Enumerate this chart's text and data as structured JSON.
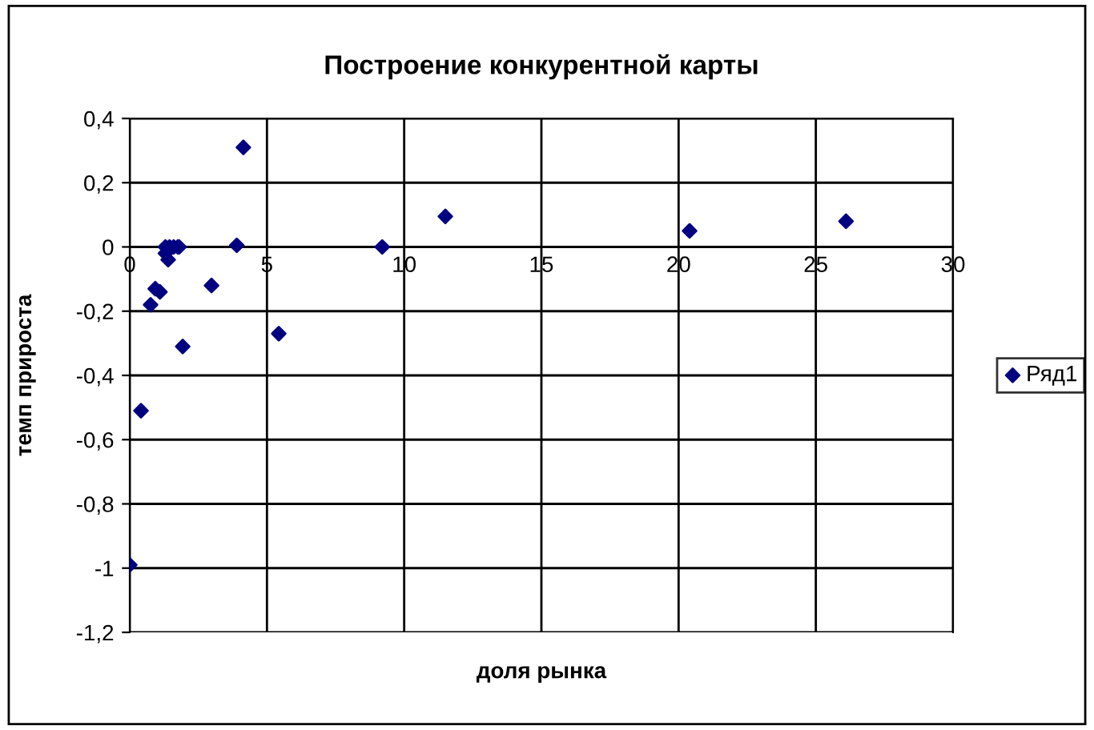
{
  "chart_data": {
    "type": "scatter",
    "title": "Построение конкурентной карты",
    "xlabel": "доля рынка",
    "ylabel": "темп прироста",
    "series": [
      {
        "name": "Ряд1",
        "color": "#000080",
        "x": [
          4.14,
          11.5,
          20.4,
          26.1,
          9.2,
          3.9,
          1.3,
          1.45,
          1.6,
          1.75,
          1.8,
          1.3,
          1.4,
          0.93,
          1.1,
          0.76,
          2.98,
          1.93,
          5.43,
          0.41,
          0.0
        ],
        "values": [
          0.31,
          0.095,
          0.05,
          0.08,
          0.0,
          0.005,
          0.0,
          0.0,
          0.0,
          0.0,
          0.0,
          -0.02,
          -0.04,
          -0.13,
          -0.14,
          -0.18,
          -0.12,
          -0.31,
          -0.27,
          -0.51,
          -0.99
        ]
      }
    ],
    "marker": "diamond",
    "legend": "right",
    "grid": true,
    "xlim": [
      0,
      30
    ],
    "xticks": [
      0,
      5,
      10,
      15,
      20,
      25,
      30
    ],
    "ylim": [
      -1.2,
      0.4
    ],
    "yticks": [
      {
        "value": -1.2,
        "label": "-1,2"
      },
      {
        "value": -1,
        "label": "-1"
      },
      {
        "value": -0.8,
        "label": "-0,8"
      },
      {
        "value": -0.6,
        "label": "-0,6"
      },
      {
        "value": -0.4,
        "label": "-0,4"
      },
      {
        "value": -0.2,
        "label": "-0,2"
      },
      0,
      {
        "value": 0.2,
        "label": "0,2"
      },
      {
        "value": 0.4,
        "label": "0,4"
      }
    ]
  }
}
